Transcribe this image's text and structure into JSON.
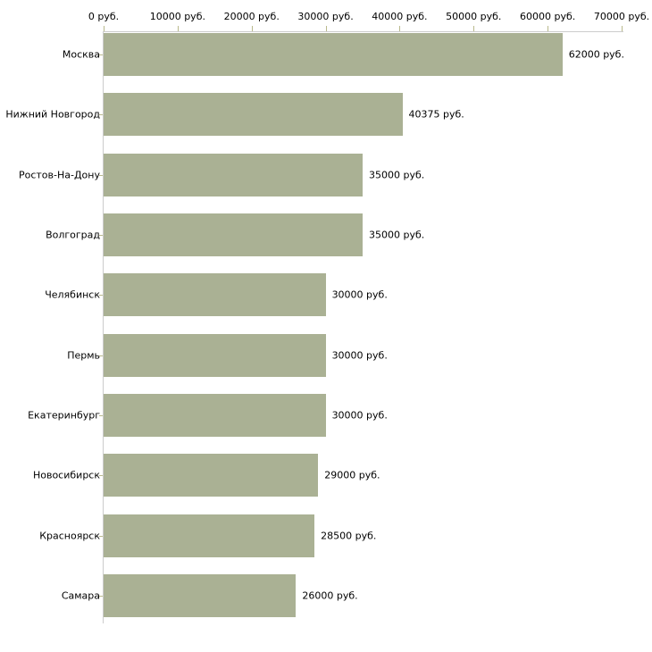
{
  "chart_data": {
    "type": "bar",
    "orientation": "horizontal",
    "categories": [
      "Москва",
      "Нижний Новгород",
      "Ростов-На-Дону",
      "Волгоград",
      "Челябинск",
      "Пермь",
      "Екатеринбург",
      "Новосибирск",
      "Красноярск",
      "Самара"
    ],
    "values": [
      62000,
      40375,
      35000,
      35000,
      30000,
      30000,
      30000,
      29000,
      28500,
      26000
    ],
    "value_labels": [
      "62000 руб.",
      "40375 руб.",
      "35000 руб.",
      "35000 руб.",
      "30000 руб.",
      "30000 руб.",
      "30000 руб.",
      "29000 руб.",
      "28500 руб.",
      "26000 руб."
    ],
    "x_axis": {
      "position": "top",
      "range": [
        0,
        70000
      ],
      "ticks": [
        0,
        10000,
        20000,
        30000,
        40000,
        50000,
        60000,
        70000
      ],
      "tick_labels": [
        "0 руб.",
        "10000 руб.",
        "20000 руб.",
        "30000 руб.",
        "40000 руб.",
        "50000 руб.",
        "60000 руб.",
        "70000 руб."
      ]
    },
    "legend": "none",
    "grid": "off",
    "colors": {
      "bar": "#aab194",
      "axis_line": "#cccccc",
      "tick_mark": "#b9b98c",
      "text": "#000000",
      "background": "#ffffff"
    }
  }
}
